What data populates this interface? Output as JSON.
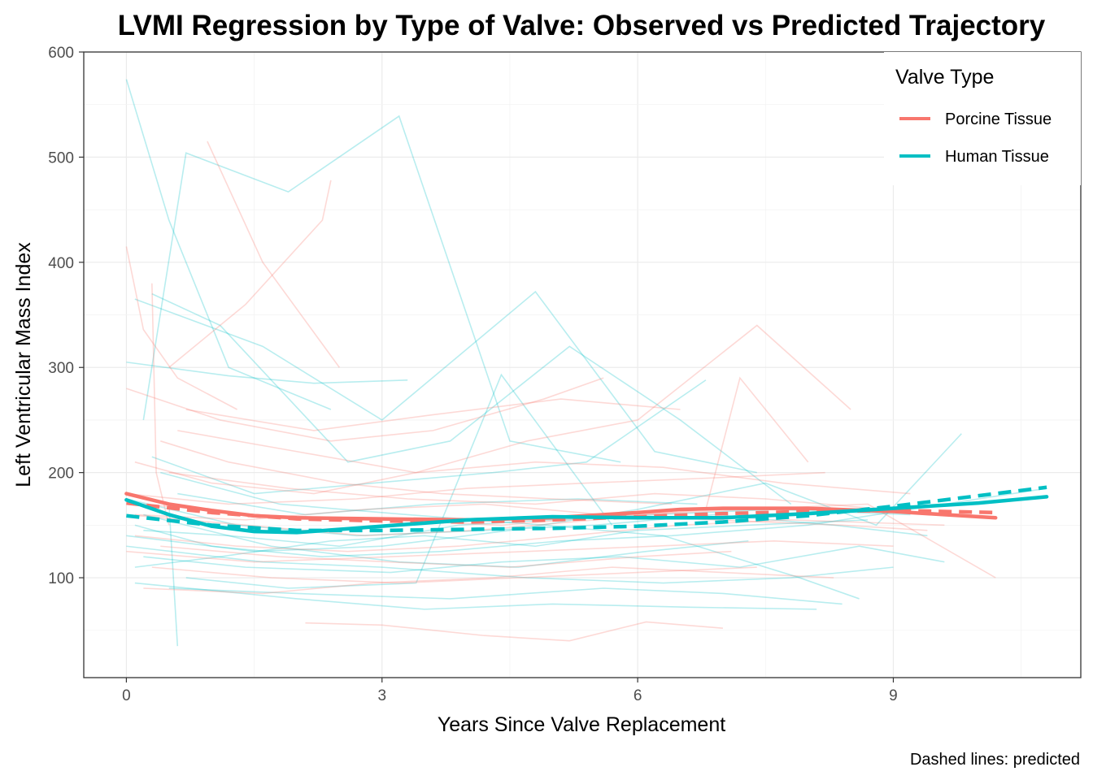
{
  "chart_data": {
    "type": "line",
    "title": "LVMI Regression by Type of Valve: Observed vs Predicted Trajectory",
    "xlabel": "Years Since Valve Replacement",
    "ylabel": "Left Ventricular Mass Index",
    "caption": "Dashed lines: predicted",
    "xlim": [
      -0.5,
      11.2
    ],
    "ylim": [
      5,
      600
    ],
    "x_ticks": [
      0,
      3,
      6,
      9
    ],
    "y_ticks": [
      100,
      200,
      300,
      400,
      500,
      600
    ],
    "x_tick_labels": [
      "0",
      "3",
      "6",
      "9"
    ],
    "y_tick_labels": [
      "100",
      "200",
      "300",
      "400",
      "500",
      "600"
    ],
    "grid": true,
    "legend": {
      "title": "Valve Type",
      "position": "top-right",
      "entries": [
        {
          "label": "Porcine Tissue",
          "color": "#F8766D"
        },
        {
          "label": "Human Tissue",
          "color": "#00BFC4"
        }
      ]
    },
    "series": [
      {
        "name": "Porcine Tissue",
        "color": "#F8766D",
        "observed": {
          "x": [
            0,
            0.5,
            1,
            1.5,
            2,
            3,
            4,
            5,
            6,
            6.5,
            7,
            8,
            9,
            10.2
          ],
          "y": [
            180,
            170,
            164,
            159,
            157,
            156,
            155,
            157,
            162,
            165,
            166,
            166,
            163,
            157
          ]
        },
        "predicted": {
          "x": [
            0,
            1,
            2,
            3,
            4,
            5,
            6,
            7,
            8,
            9,
            10.2
          ],
          "y": [
            171,
            162,
            156,
            154,
            153,
            155,
            158,
            161,
            163,
            164,
            162
          ]
        }
      },
      {
        "name": "Human Tissue",
        "color": "#00BFC4",
        "observed": {
          "x": [
            0,
            0.5,
            1,
            1.5,
            2,
            3,
            4,
            5,
            6,
            7,
            8,
            9,
            10,
            10.8
          ],
          "y": [
            174,
            160,
            149,
            144,
            143,
            149,
            155,
            158,
            157,
            157,
            161,
            166,
            171,
            177
          ]
        },
        "predicted": {
          "x": [
            0,
            1,
            2,
            3,
            4,
            5,
            6,
            7,
            8,
            9,
            10,
            10.8
          ],
          "y": [
            159,
            150,
            145,
            145,
            146,
            147,
            149,
            153,
            159,
            168,
            178,
            186
          ]
        }
      }
    ],
    "individual_trajectories": [
      {
        "group": "Human Tissue",
        "x": [
          0,
          0.5,
          1.2,
          2.4
        ],
        "y": [
          574,
          440,
          300,
          260
        ]
      },
      {
        "group": "Human Tissue",
        "x": [
          0.2,
          0.7,
          1.9,
          3.2,
          4.5,
          5.8
        ],
        "y": [
          250,
          504,
          467,
          539,
          230,
          210
        ]
      },
      {
        "group": "Human Tissue",
        "x": [
          0.1,
          1.6,
          3.0,
          4.8,
          6.2,
          7.4
        ],
        "y": [
          365,
          320,
          250,
          372,
          220,
          200
        ]
      },
      {
        "group": "Human Tissue",
        "x": [
          0.3,
          1.1,
          2.6,
          3.8,
          5.2,
          6.5,
          7.8
        ],
        "y": [
          370,
          340,
          210,
          230,
          320,
          250,
          170
        ]
      },
      {
        "group": "Human Tissue",
        "x": [
          0.0,
          1.2,
          2.2,
          3.3
        ],
        "y": [
          305,
          292,
          285,
          288
        ]
      },
      {
        "group": "Human Tissue",
        "x": [
          0.5,
          0.6
        ],
        "y": [
          170,
          35
        ]
      },
      {
        "group": "Human Tissue",
        "x": [
          0.0,
          1.5,
          3.0,
          4.5,
          6.0,
          7.5,
          8.8,
          9.8
        ],
        "y": [
          140,
          125,
          130,
          145,
          165,
          190,
          150,
          237
        ]
      },
      {
        "group": "Human Tissue",
        "x": [
          0.2,
          1.4,
          3.1,
          4.4,
          5.8,
          7.2,
          8.6,
          9.6
        ],
        "y": [
          120,
          110,
          105,
          115,
          120,
          110,
          130,
          115
        ]
      },
      {
        "group": "Human Tissue",
        "x": [
          0.1,
          2.0,
          3.5,
          5.0,
          6.6,
          8.1
        ],
        "y": [
          95,
          80,
          70,
          75,
          72,
          70
        ]
      },
      {
        "group": "Human Tissue",
        "x": [
          0.4,
          1.8,
          3.3,
          4.9,
          6.3,
          7.9,
          8.6
        ],
        "y": [
          200,
          170,
          160,
          150,
          140,
          100,
          80
        ]
      },
      {
        "group": "Human Tissue",
        "x": [
          0.0,
          1.3,
          2.7,
          4.2,
          5.5,
          6.9,
          8.3,
          9.4
        ],
        "y": [
          175,
          150,
          140,
          145,
          150,
          160,
          150,
          140
        ]
      },
      {
        "group": "Human Tissue",
        "x": [
          0.6,
          2.1,
          3.6,
          5.3,
          6.7
        ],
        "y": [
          180,
          160,
          170,
          175,
          170
        ]
      },
      {
        "group": "Human Tissue",
        "x": [
          0.2,
          1.7,
          3.2,
          4.6,
          6.1,
          7.3
        ],
        "y": [
          160,
          130,
          115,
          110,
          125,
          135
        ]
      },
      {
        "group": "Human Tissue",
        "x": [
          0.1,
          1.0,
          2.3,
          3.7,
          5.1,
          6.4,
          8.0,
          10.4,
          10.8
        ],
        "y": [
          150,
          130,
          120,
          125,
          135,
          140,
          150,
          180,
          185
        ]
      },
      {
        "group": "Human Tissue",
        "x": [
          0.3,
          1.5,
          2.9,
          4.3,
          5.4,
          6.8
        ],
        "y": [
          215,
          180,
          190,
          200,
          210,
          288
        ]
      },
      {
        "group": "Human Tissue",
        "x": [
          0.7,
          1.9,
          3.4,
          4.4,
          5.7
        ],
        "y": [
          100,
          90,
          95,
          293,
          150
        ]
      },
      {
        "group": "Human Tissue",
        "x": [
          0.0,
          1.6,
          3.0,
          4.7,
          6.3,
          7.8,
          9.0
        ],
        "y": [
          130,
          115,
          110,
          100,
          95,
          100,
          110
        ]
      },
      {
        "group": "Human Tissue",
        "x": [
          0.5,
          2.0,
          3.8,
          5.6,
          7.0,
          8.4
        ],
        "y": [
          90,
          85,
          80,
          90,
          85,
          75
        ]
      },
      {
        "group": "Human Tissue",
        "x": [
          0.2,
          1.2,
          2.5,
          3.9,
          5.0,
          6.2,
          7.6,
          9.2
        ],
        "y": [
          145,
          140,
          130,
          150,
          155,
          160,
          165,
          160
        ]
      },
      {
        "group": "Human Tissue",
        "x": [
          0.1,
          1.1,
          2.4,
          3.5,
          4.8,
          6.0,
          7.3,
          8.7
        ],
        "y": [
          110,
          120,
          135,
          140,
          130,
          145,
          150,
          155
        ]
      },
      {
        "group": "Porcine Tissue",
        "x": [
          0.95,
          1.6,
          2.5
        ],
        "y": [
          515,
          400,
          300
        ]
      },
      {
        "group": "Porcine Tissue",
        "x": [
          0.5,
          1.4,
          2.3,
          2.4
        ],
        "y": [
          300,
          360,
          440,
          478
        ]
      },
      {
        "group": "Porcine Tissue",
        "x": [
          0.0,
          0.2,
          0.6,
          1.3
        ],
        "y": [
          415,
          336,
          290,
          260
        ]
      },
      {
        "group": "Porcine Tissue",
        "x": [
          0.3,
          0.35,
          0.5
        ],
        "y": [
          380,
          200,
          150
        ]
      },
      {
        "group": "Porcine Tissue",
        "x": [
          0.1,
          1.0,
          2.2,
          3.4,
          4.7,
          6.0,
          7.4,
          8.5
        ],
        "y": [
          210,
          190,
          180,
          200,
          230,
          250,
          340,
          260
        ]
      },
      {
        "group": "Porcine Tissue",
        "x": [
          0.0,
          1.4,
          2.8,
          4.1,
          5.5,
          6.8,
          7.2,
          8.0
        ],
        "y": [
          160,
          150,
          140,
          145,
          155,
          165,
          290,
          210
        ]
      },
      {
        "group": "Porcine Tissue",
        "x": [
          0.2,
          1.5,
          3.0,
          4.4,
          5.9,
          7.3,
          8.7,
          10.2
        ],
        "y": [
          170,
          160,
          155,
          150,
          160,
          165,
          170,
          100
        ]
      },
      {
        "group": "Porcine Tissue",
        "x": [
          0.4,
          1.8,
          3.1,
          4.5,
          6.0,
          7.1
        ],
        "y": [
          130,
          120,
          115,
          110,
          120,
          125
        ]
      },
      {
        "group": "Porcine Tissue",
        "x": [
          2.1,
          3.0,
          4.2,
          5.2,
          6.1,
          7.0
        ],
        "y": [
          57,
          55,
          45,
          40,
          58,
          52
        ]
      },
      {
        "group": "Porcine Tissue",
        "x": [
          0.0,
          1.2,
          2.7,
          4.0,
          5.4,
          6.9,
          8.2
        ],
        "y": [
          180,
          170,
          175,
          185,
          190,
          195,
          200
        ]
      },
      {
        "group": "Porcine Tissue",
        "x": [
          0.6,
          2.0,
          3.4,
          4.8,
          6.3,
          7.7,
          9.2
        ],
        "y": [
          240,
          220,
          200,
          210,
          205,
          190,
          180
        ]
      },
      {
        "group": "Porcine Tissue",
        "x": [
          0.1,
          1.3,
          2.6,
          3.9,
          5.2,
          6.5,
          7.8,
          9.6
        ],
        "y": [
          140,
          130,
          125,
          130,
          140,
          150,
          155,
          150
        ]
      },
      {
        "group": "Porcine Tissue",
        "x": [
          0.3,
          1.7,
          3.2,
          4.6,
          6.0,
          7.4
        ],
        "y": [
          110,
          100,
          95,
          100,
          105,
          110
        ]
      },
      {
        "group": "Porcine Tissue",
        "x": [
          0.0,
          1.1,
          2.4,
          3.6,
          4.9,
          5.6
        ],
        "y": [
          280,
          250,
          230,
          240,
          270,
          290
        ]
      },
      {
        "group": "Porcine Tissue",
        "x": [
          0.5,
          1.9,
          3.3,
          4.8,
          6.2,
          7.5,
          8.9
        ],
        "y": [
          200,
          185,
          175,
          170,
          180,
          175,
          165
        ]
      },
      {
        "group": "Porcine Tissue",
        "x": [
          0.2,
          1.6,
          2.9,
          4.3,
          5.7,
          7.0,
          8.3
        ],
        "y": [
          90,
          85,
          95,
          100,
          110,
          105,
          100
        ]
      },
      {
        "group": "Porcine Tissue",
        "x": [
          0.1,
          1.4,
          2.8,
          4.2,
          5.6,
          6.9,
          8.4,
          9.4
        ],
        "y": [
          160,
          155,
          165,
          170,
          160,
          155,
          150,
          145
        ]
      },
      {
        "group": "Porcine Tissue",
        "x": [
          0.4,
          1.2,
          2.5,
          3.7,
          5.0,
          6.4
        ],
        "y": [
          230,
          210,
          190,
          180,
          175,
          170
        ]
      },
      {
        "group": "Porcine Tissue",
        "x": [
          0.0,
          1.5,
          3.1,
          4.7,
          6.2,
          7.6,
          9.0
        ],
        "y": [
          125,
          115,
          120,
          125,
          130,
          135,
          130
        ]
      },
      {
        "group": "Porcine Tissue",
        "x": [
          0.7,
          2.2,
          3.6,
          5.1,
          6.5
        ],
        "y": [
          260,
          240,
          255,
          270,
          260
        ]
      }
    ]
  }
}
